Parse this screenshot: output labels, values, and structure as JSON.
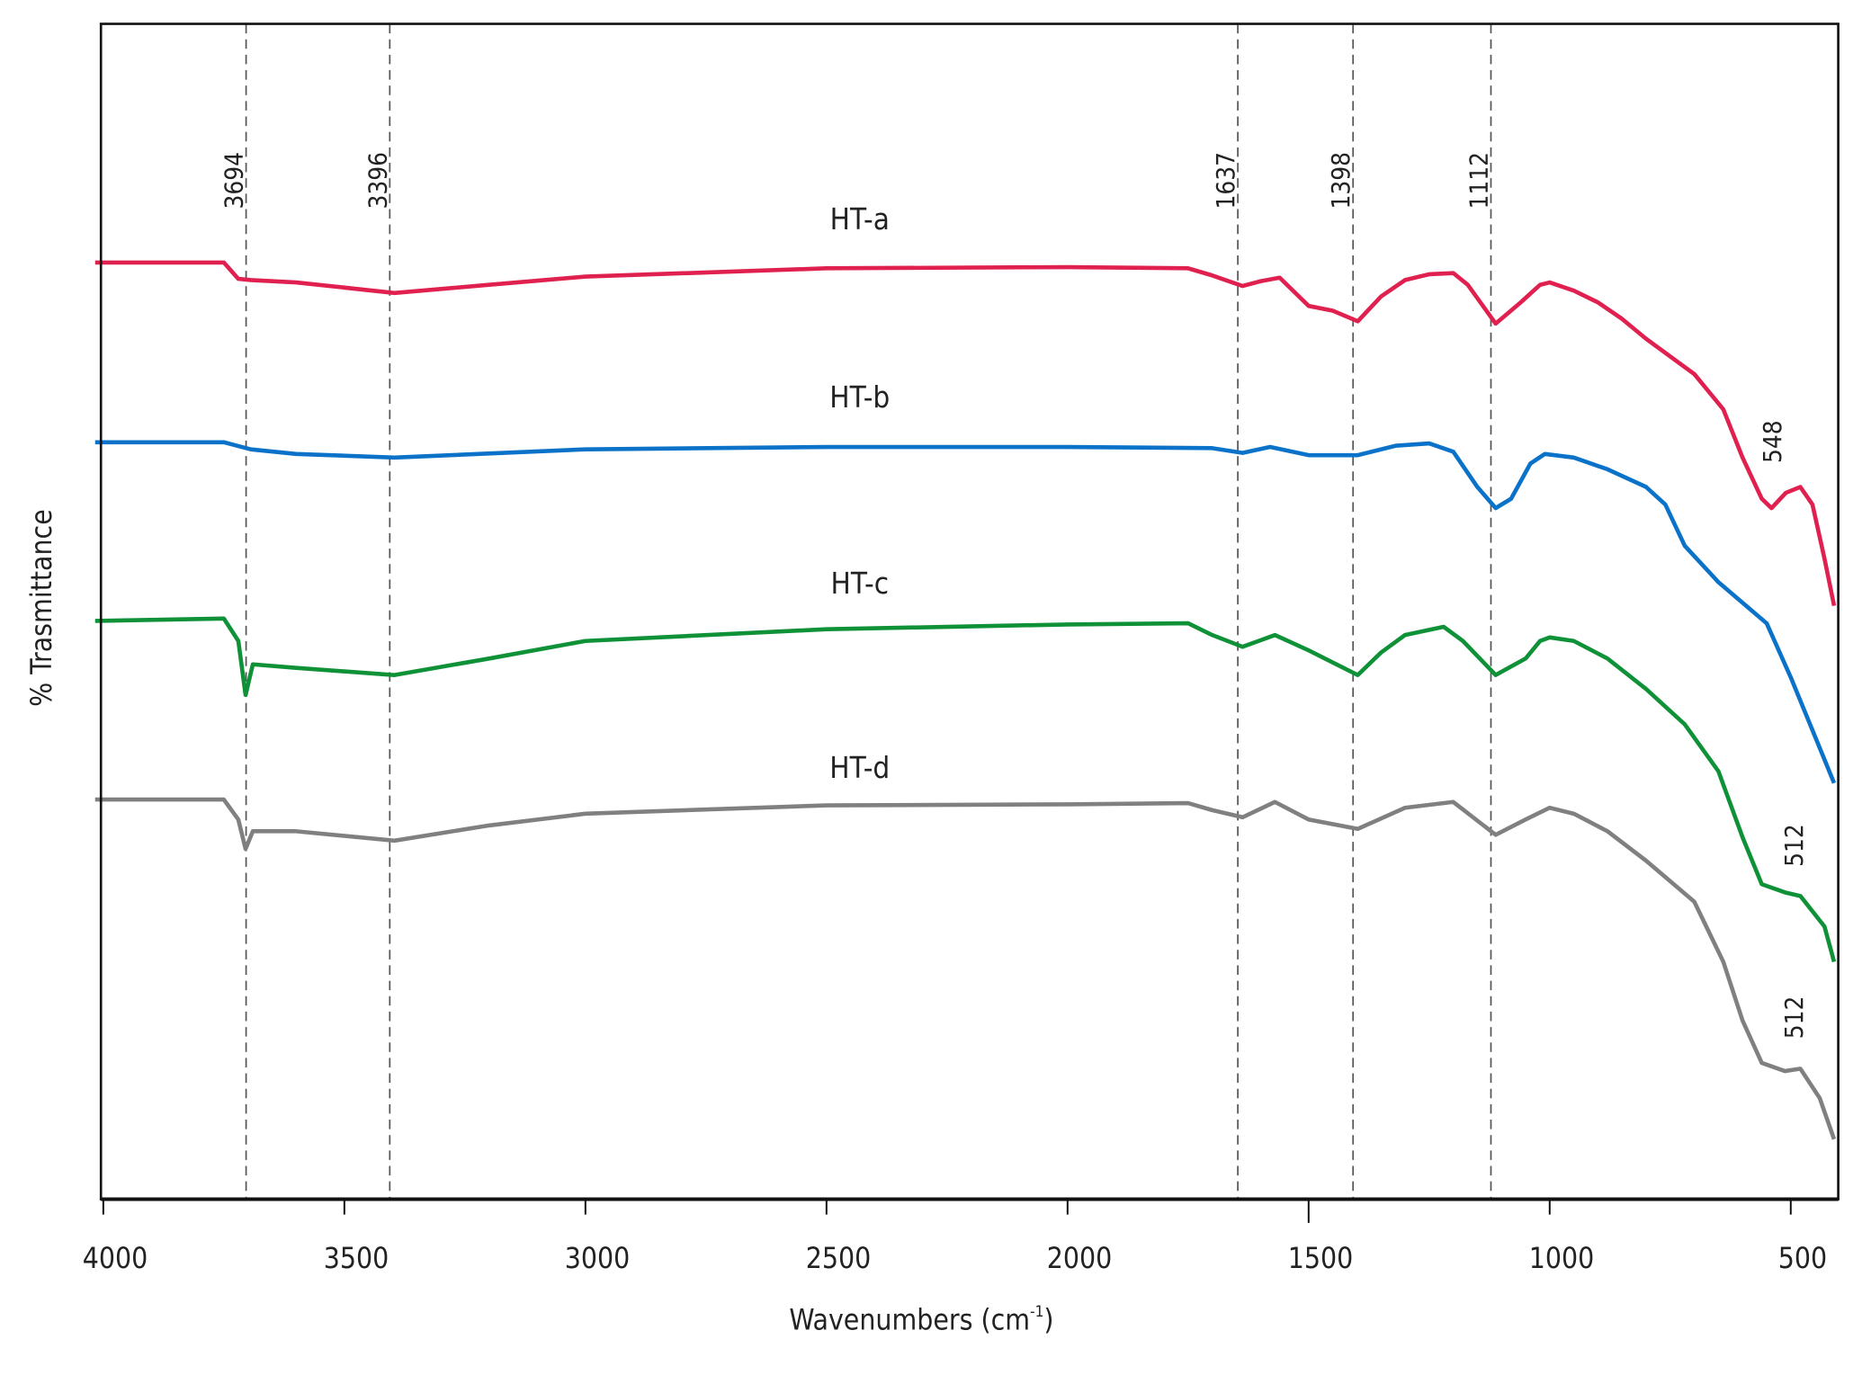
{
  "chart_data": {
    "type": "line",
    "title": "",
    "xlabel": "Wavenumbers (cm",
    "xlabel_sup": "-1",
    "xlabel_close": ")",
    "ylabel": "% Trasmittance",
    "xlim": [
      4000,
      400
    ],
    "x_reversed": true,
    "ylim": [
      0,
      100
    ],
    "y_ticks_shown": false,
    "grid": false,
    "x_ticks": [
      4000,
      3500,
      3000,
      2500,
      2000,
      1500,
      1000,
      500
    ],
    "reference_lines": [
      {
        "x": 3694,
        "label": "3694"
      },
      {
        "x": 3396,
        "label": "3396"
      },
      {
        "x": 1637,
        "label": "1637"
      },
      {
        "x": 1398,
        "label": "1398"
      },
      {
        "x": 1112,
        "label": "1112"
      }
    ],
    "series": [
      {
        "name": "HT-a",
        "color": "#e0204f",
        "annotation": {
          "label": "548",
          "x": 548
        },
        "x": [
          4017,
          3750,
          3720,
          3694,
          3600,
          3396,
          3200,
          3000,
          2500,
          2000,
          1750,
          1700,
          1637,
          1600,
          1560,
          1500,
          1450,
          1398,
          1350,
          1300,
          1250,
          1200,
          1170,
          1112,
          1060,
          1020,
          1000,
          950,
          900,
          850,
          800,
          700,
          640,
          600,
          560,
          540,
          510,
          480,
          455,
          430,
          410
        ],
        "y": [
          79.7,
          79.7,
          78.3,
          78.2,
          78.0,
          77.1,
          77.8,
          78.5,
          79.2,
          79.3,
          79.2,
          78.6,
          77.7,
          78.1,
          78.4,
          76.0,
          75.6,
          74.7,
          76.8,
          78.2,
          78.7,
          78.8,
          77.8,
          74.5,
          76.3,
          77.8,
          78.0,
          77.3,
          76.3,
          74.9,
          73.2,
          70.2,
          67.2,
          63.1,
          59.6,
          58.8,
          60.1,
          60.6,
          59.1,
          54.5,
          50.5
        ]
      },
      {
        "name": "HT-b",
        "color": "#0a72c8",
        "x": [
          4017,
          3750,
          3694,
          3600,
          3396,
          3000,
          2500,
          2000,
          1700,
          1637,
          1580,
          1500,
          1398,
          1320,
          1250,
          1200,
          1150,
          1112,
          1080,
          1040,
          1010,
          950,
          880,
          800,
          760,
          720,
          650,
          550,
          500,
          450,
          410
        ],
        "y": [
          64.4,
          64.4,
          63.8,
          63.4,
          63.1,
          63.8,
          64.0,
          64.0,
          63.9,
          63.5,
          64.0,
          63.3,
          63.3,
          64.1,
          64.3,
          63.6,
          60.6,
          58.8,
          59.6,
          62.6,
          63.4,
          63.1,
          62.1,
          60.6,
          59.1,
          55.6,
          52.5,
          49.0,
          44.4,
          39.4,
          35.4
        ]
      },
      {
        "name": "HT-c",
        "color": "#0f9138",
        "annotation": {
          "label": "512",
          "x": 512
        },
        "x": [
          4017,
          3750,
          3720,
          3705,
          3690,
          3600,
          3396,
          3200,
          3000,
          2500,
          2000,
          1750,
          1700,
          1637,
          1570,
          1500,
          1398,
          1350,
          1300,
          1220,
          1180,
          1112,
          1050,
          1020,
          1000,
          950,
          880,
          800,
          720,
          650,
          600,
          560,
          512,
          480,
          430,
          410
        ],
        "y": [
          49.2,
          49.4,
          47.5,
          42.9,
          45.5,
          45.2,
          44.6,
          46.0,
          47.5,
          48.5,
          48.9,
          49.0,
          48.0,
          47.0,
          48.0,
          46.7,
          44.6,
          46.5,
          48.0,
          48.7,
          47.5,
          44.6,
          46.0,
          47.5,
          47.8,
          47.5,
          46.0,
          43.4,
          40.4,
          36.4,
          30.8,
          26.8,
          26.1,
          25.8,
          23.2,
          20.2
        ]
      },
      {
        "name": "HT-d",
        "color": "#808080",
        "annotation": {
          "label": "512",
          "x": 512
        },
        "x": [
          4017,
          3750,
          3720,
          3705,
          3690,
          3600,
          3396,
          3200,
          3000,
          2500,
          2000,
          1750,
          1700,
          1637,
          1570,
          1500,
          1398,
          1300,
          1200,
          1112,
          1050,
          1000,
          950,
          880,
          800,
          700,
          640,
          600,
          560,
          512,
          480,
          440,
          410
        ],
        "y": [
          34.0,
          34.0,
          32.3,
          29.8,
          31.3,
          31.3,
          30.5,
          31.8,
          32.8,
          33.5,
          33.6,
          33.7,
          33.1,
          32.5,
          33.8,
          32.3,
          31.5,
          33.3,
          33.8,
          31.0,
          32.3,
          33.3,
          32.8,
          31.3,
          28.8,
          25.3,
          20.2,
          15.2,
          11.6,
          10.9,
          11.1,
          8.6,
          5.1
        ]
      }
    ]
  }
}
